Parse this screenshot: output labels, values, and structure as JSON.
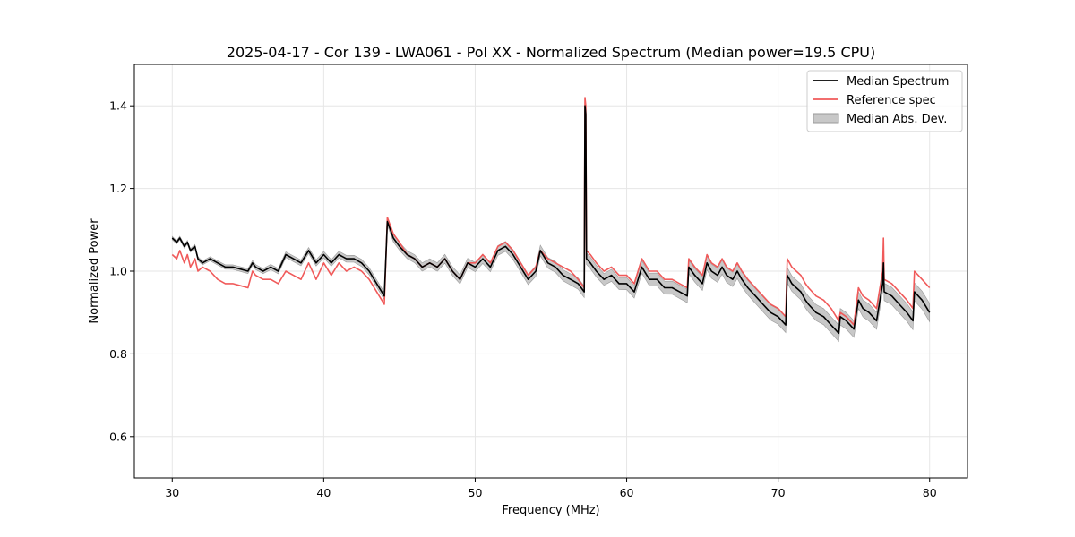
{
  "chart_data": {
    "type": "line",
    "title": "2025-04-17 - Cor 139 - LWA061 - Pol XX - Normalized Spectrum (Median power=19.5 CPU)",
    "xlabel": "Frequency (MHz)",
    "ylabel": "Normalized Power",
    "xlim": [
      27.5,
      82.5
    ],
    "ylim": [
      0.5,
      1.5
    ],
    "xticks": [
      30,
      40,
      50,
      60,
      70,
      80
    ],
    "yticks": [
      0.6,
      0.8,
      1.0,
      1.2,
      1.4
    ],
    "grid": true,
    "legend_position": "top-right",
    "legend": [
      "Median Spectrum",
      "Reference spec",
      "Median Abs. Dev."
    ],
    "colors": {
      "median": "#000000",
      "reference": "#f05a5a",
      "mad": "#c8c8c8",
      "mad_edge": "#9a9a9a"
    },
    "series": [
      {
        "name": "Median Spectrum",
        "x": [
          30.0,
          30.3,
          30.5,
          30.8,
          31.0,
          31.2,
          31.5,
          31.7,
          32.0,
          32.5,
          33.0,
          33.5,
          34.0,
          34.5,
          35.0,
          35.3,
          35.5,
          36.0,
          36.5,
          37.0,
          37.5,
          38.0,
          38.5,
          39.0,
          39.5,
          40.0,
          40.5,
          41.0,
          41.5,
          42.0,
          42.5,
          43.0,
          43.5,
          44.0,
          44.2,
          44.3,
          44.6,
          45.0,
          45.5,
          46.0,
          46.5,
          47.0,
          47.5,
          48.0,
          48.5,
          49.0,
          49.5,
          50.0,
          50.5,
          51.0,
          51.5,
          52.0,
          52.5,
          53.0,
          53.5,
          54.0,
          54.3,
          54.8,
          55.3,
          55.8,
          56.3,
          56.8,
          57.2,
          57.25,
          57.3,
          57.35,
          57.6,
          58.0,
          58.5,
          59.0,
          59.5,
          60.0,
          60.5,
          61.0,
          61.5,
          62.0,
          62.5,
          63.0,
          63.5,
          64.0,
          64.1,
          64.5,
          65.0,
          65.3,
          65.6,
          66.0,
          66.3,
          66.6,
          67.0,
          67.3,
          67.6,
          68.0,
          68.5,
          69.0,
          69.5,
          70.0,
          70.5,
          70.6,
          70.9,
          71.2,
          71.5,
          71.8,
          72.0,
          72.5,
          73.0,
          73.5,
          74.0,
          74.1,
          74.5,
          75.0,
          75.3,
          75.6,
          76.0,
          76.5,
          76.9,
          76.95,
          77.0,
          77.5,
          78.0,
          78.5,
          78.9,
          79.0,
          79.5,
          80.0
        ],
        "values": [
          1.08,
          1.07,
          1.08,
          1.06,
          1.07,
          1.05,
          1.06,
          1.03,
          1.02,
          1.03,
          1.02,
          1.01,
          1.01,
          1.005,
          1.0,
          1.02,
          1.01,
          1.0,
          1.01,
          1.0,
          1.04,
          1.03,
          1.02,
          1.05,
          1.02,
          1.04,
          1.02,
          1.04,
          1.03,
          1.03,
          1.02,
          1.0,
          0.97,
          0.94,
          1.12,
          1.11,
          1.08,
          1.06,
          1.04,
          1.03,
          1.01,
          1.02,
          1.01,
          1.03,
          1.0,
          0.98,
          1.02,
          1.01,
          1.03,
          1.01,
          1.05,
          1.06,
          1.04,
          1.01,
          0.98,
          1.0,
          1.05,
          1.02,
          1.01,
          0.99,
          0.98,
          0.97,
          0.95,
          1.4,
          1.38,
          1.03,
          1.02,
          1.0,
          0.98,
          0.99,
          0.97,
          0.97,
          0.95,
          1.01,
          0.98,
          0.98,
          0.96,
          0.96,
          0.95,
          0.94,
          1.01,
          0.99,
          0.97,
          1.02,
          1.0,
          0.99,
          1.01,
          0.99,
          0.98,
          1.0,
          0.98,
          0.96,
          0.94,
          0.92,
          0.9,
          0.89,
          0.87,
          0.99,
          0.97,
          0.96,
          0.95,
          0.93,
          0.92,
          0.9,
          0.89,
          0.87,
          0.85,
          0.89,
          0.88,
          0.86,
          0.93,
          0.91,
          0.9,
          0.88,
          0.97,
          1.02,
          0.95,
          0.94,
          0.92,
          0.9,
          0.88,
          0.95,
          0.93,
          0.9
        ]
      },
      {
        "name": "Reference spec",
        "x": [
          30.0,
          30.3,
          30.5,
          30.8,
          31.0,
          31.2,
          31.5,
          31.7,
          32.0,
          32.5,
          33.0,
          33.5,
          34.0,
          34.5,
          35.0,
          35.3,
          35.5,
          36.0,
          36.5,
          37.0,
          37.5,
          38.0,
          38.5,
          39.0,
          39.5,
          40.0,
          40.5,
          41.0,
          41.5,
          42.0,
          42.5,
          43.0,
          43.5,
          44.0,
          44.2,
          44.3,
          44.6,
          45.0,
          45.5,
          46.0,
          46.5,
          47.0,
          47.5,
          48.0,
          48.5,
          49.0,
          49.5,
          50.0,
          50.5,
          51.0,
          51.5,
          52.0,
          52.5,
          53.0,
          53.5,
          54.0,
          54.3,
          54.8,
          55.3,
          55.8,
          56.3,
          56.8,
          57.2,
          57.25,
          57.3,
          57.35,
          57.6,
          58.0,
          58.5,
          59.0,
          59.5,
          60.0,
          60.5,
          61.0,
          61.5,
          62.0,
          62.5,
          63.0,
          63.5,
          64.0,
          64.1,
          64.5,
          65.0,
          65.3,
          65.6,
          66.0,
          66.3,
          66.6,
          67.0,
          67.3,
          67.6,
          68.0,
          68.5,
          69.0,
          69.5,
          70.0,
          70.5,
          70.6,
          70.9,
          71.2,
          71.5,
          71.8,
          72.0,
          72.5,
          73.0,
          73.5,
          74.0,
          74.1,
          74.5,
          75.0,
          75.3,
          75.6,
          76.0,
          76.5,
          76.9,
          76.95,
          77.0,
          77.5,
          78.0,
          78.5,
          78.9,
          79.0,
          79.5,
          80.0
        ],
        "values": [
          1.04,
          1.03,
          1.05,
          1.02,
          1.04,
          1.01,
          1.03,
          1.0,
          1.01,
          1.0,
          0.98,
          0.97,
          0.97,
          0.965,
          0.96,
          1.0,
          0.99,
          0.98,
          0.98,
          0.97,
          1.0,
          0.99,
          0.98,
          1.02,
          0.98,
          1.02,
          0.99,
          1.02,
          1.0,
          1.01,
          1.0,
          0.98,
          0.95,
          0.92,
          1.13,
          1.12,
          1.09,
          1.07,
          1.04,
          1.03,
          1.01,
          1.02,
          1.01,
          1.03,
          1.0,
          0.98,
          1.02,
          1.02,
          1.04,
          1.02,
          1.06,
          1.07,
          1.05,
          1.02,
          0.99,
          1.01,
          1.05,
          1.03,
          1.02,
          1.01,
          1.0,
          0.98,
          0.96,
          1.42,
          1.4,
          1.05,
          1.04,
          1.02,
          1.0,
          1.01,
          0.99,
          0.99,
          0.97,
          1.03,
          1.0,
          1.0,
          0.98,
          0.98,
          0.97,
          0.96,
          1.03,
          1.01,
          0.99,
          1.04,
          1.02,
          1.01,
          1.03,
          1.01,
          1.0,
          1.02,
          1.0,
          0.98,
          0.96,
          0.94,
          0.92,
          0.91,
          0.89,
          1.03,
          1.01,
          1.0,
          0.99,
          0.97,
          0.96,
          0.94,
          0.93,
          0.91,
          0.88,
          0.9,
          0.89,
          0.87,
          0.96,
          0.94,
          0.93,
          0.91,
          1.0,
          1.08,
          0.98,
          0.97,
          0.95,
          0.93,
          0.91,
          1.0,
          0.98,
          0.96
        ]
      }
    ]
  }
}
